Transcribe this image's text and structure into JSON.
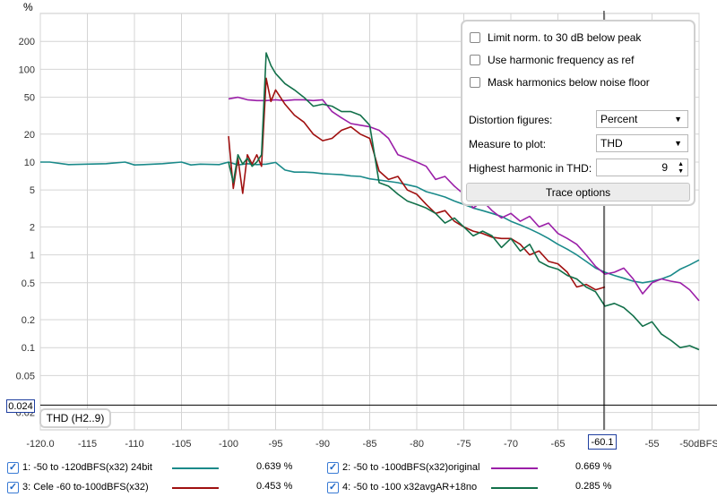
{
  "chart_data": {
    "type": "line",
    "ylabel": "%",
    "xlabel": "",
    "x_unit_label": "dBFS",
    "y_scale": "log",
    "xlim": [
      -120,
      -50
    ],
    "ylim": [
      0.013,
      400
    ],
    "grid": true,
    "x_ticks": [
      -120.0,
      -115,
      -110,
      -105,
      -100,
      -95,
      -90,
      -85,
      -80,
      -75,
      -70,
      -65,
      -60,
      -55,
      -50
    ],
    "x_tick_labels": [
      "-120.0",
      "-115",
      "-110",
      "-105",
      "-100",
      "-95",
      "-90",
      "-85",
      "-80",
      "-75",
      "-70",
      "-65",
      "",
      "-55",
      "-50dBFS"
    ],
    "y_ticks": [
      0.02,
      0.05,
      0.1,
      0.2,
      0.5,
      1,
      2,
      5,
      10,
      20,
      50,
      100,
      200
    ],
    "y_tick_labels": [
      "0.02",
      "0.05",
      "0.1",
      "0.2",
      "0.5",
      "1",
      "2",
      "5",
      "10",
      "20",
      "50",
      "100",
      "200"
    ],
    "cursor_x_label": "-60.1",
    "cursor_x": -60.1,
    "cursor_y_label": "0.024",
    "cursor_y": 0.024,
    "series": [
      {
        "name": "1: -50 to -120dBFS(x32) 24bit",
        "color": "#1a8a8a",
        "x": [
          -120,
          -119,
          -117,
          -115,
          -113,
          -111,
          -110,
          -109,
          -107,
          -105,
          -104,
          -103,
          -101,
          -100,
          -99,
          -98,
          -97,
          -96,
          -95,
          -94,
          -93,
          -92,
          -91,
          -90,
          -89,
          -88,
          -87,
          -86,
          -85,
          -84,
          -83,
          -82,
          -81,
          -80,
          -79,
          -78,
          -77,
          -76,
          -75,
          -74,
          -73,
          -72,
          -71,
          -70,
          -69,
          -68,
          -67,
          -66,
          -65,
          -64,
          -63,
          -62,
          -61,
          -60,
          -59,
          -58,
          -57,
          -56,
          -55,
          -54,
          -53,
          -52,
          -51,
          -50
        ],
        "y": [
          10,
          10,
          9.4,
          9.5,
          9.6,
          10,
          9.3,
          9.4,
          9.6,
          10,
          9.3,
          9.5,
          9.4,
          10,
          9.3,
          9.6,
          9.4,
          9.5,
          9.9,
          8.2,
          7.8,
          7.8,
          7.7,
          7.5,
          7.4,
          7.3,
          7.1,
          7.0,
          6.6,
          6.4,
          6.2,
          6.0,
          5.7,
          5.4,
          4.8,
          4.5,
          4.2,
          3.8,
          3.5,
          3.2,
          3.0,
          2.8,
          2.6,
          2.3,
          2.1,
          1.9,
          1.7,
          1.5,
          1.3,
          1.15,
          1.0,
          0.85,
          0.72,
          0.65,
          0.6,
          0.56,
          0.52,
          0.5,
          0.52,
          0.55,
          0.6,
          0.7,
          0.78,
          0.88
        ]
      },
      {
        "name": "2: -50 to -100dBFS(x32)original",
        "color": "#9b1fa8",
        "x": [
          -100,
          -99,
          -98,
          -97,
          -96,
          -95,
          -94,
          -93,
          -92,
          -91,
          -90,
          -89,
          -88,
          -87,
          -86,
          -85,
          -84,
          -83,
          -82,
          -81,
          -80,
          -79,
          -78,
          -77,
          -76,
          -75,
          -74,
          -73,
          -72,
          -71,
          -70,
          -69,
          -68,
          -67,
          -66,
          -65,
          -64,
          -63,
          -62,
          -61,
          -60,
          -59,
          -58,
          -57,
          -56,
          -55,
          -54,
          -53,
          -52,
          -51,
          -50
        ],
        "y": [
          48,
          50,
          47,
          46,
          46,
          47,
          46,
          47,
          47,
          46,
          47,
          35,
          30,
          26,
          25,
          24,
          22,
          18,
          12,
          11,
          10,
          9,
          6.5,
          7,
          5.5,
          4.5,
          3.2,
          3.8,
          3,
          2.5,
          2.8,
          2.3,
          2.6,
          2,
          2.2,
          1.7,
          1.5,
          1.3,
          1.0,
          0.75,
          0.62,
          0.65,
          0.72,
          0.55,
          0.38,
          0.5,
          0.55,
          0.52,
          0.5,
          0.42,
          0.32
        ]
      },
      {
        "name": "3: Cele -60 to-100dBFS(x32)",
        "color": "#a01010",
        "x": [
          -100,
          -99.5,
          -99,
          -98.5,
          -98,
          -97.5,
          -97,
          -96.5,
          -96,
          -95.5,
          -95,
          -94,
          -93,
          -92,
          -91,
          -90,
          -89,
          -88,
          -87,
          -86,
          -85,
          -84,
          -83,
          -82,
          -81,
          -80,
          -79,
          -78,
          -77,
          -76,
          -75,
          -74,
          -73,
          -72,
          -71,
          -70,
          -69,
          -68,
          -67,
          -66,
          -65,
          -64,
          -63,
          -62,
          -61,
          -60
        ],
        "y": [
          19,
          5.2,
          11,
          4.6,
          12,
          9.5,
          12,
          9,
          80,
          45,
          60,
          42,
          32,
          27,
          20,
          17,
          18,
          22,
          24,
          20,
          18,
          8,
          6.5,
          7,
          5,
          4.5,
          3.5,
          2.8,
          3,
          2.3,
          2.0,
          1.8,
          1.7,
          1.55,
          1.5,
          1.5,
          1.3,
          1.0,
          1.1,
          0.85,
          0.8,
          0.65,
          0.45,
          0.48,
          0.42,
          0.45
        ]
      },
      {
        "name": "4: -50 to -100 x32avgAR+18no",
        "color": "#12704a",
        "x": [
          -100,
          -99.5,
          -99,
          -98.5,
          -98,
          -97.5,
          -97,
          -96.5,
          -96,
          -95.5,
          -95,
          -94,
          -93,
          -92,
          -91,
          -90,
          -89,
          -88,
          -87,
          -86,
          -85,
          -84,
          -83,
          -82,
          -81,
          -80,
          -79,
          -78,
          -77,
          -76,
          -75,
          -74,
          -73,
          -72,
          -71,
          -70,
          -69,
          -68,
          -67,
          -66,
          -65,
          -64,
          -63,
          -62,
          -61,
          -60,
          -59,
          -58,
          -57,
          -56,
          -55,
          -54,
          -53,
          -52,
          -51,
          -50
        ],
        "y": [
          10,
          6,
          12,
          9.5,
          11,
          9,
          10,
          12,
          150,
          110,
          90,
          70,
          60,
          50,
          40,
          42,
          40,
          35,
          35,
          32,
          25,
          6,
          5.5,
          4.5,
          3.8,
          3.5,
          3.2,
          2.8,
          2.2,
          2.5,
          2.0,
          1.6,
          1.8,
          1.6,
          1.2,
          1.5,
          1.1,
          1.3,
          0.85,
          0.75,
          0.7,
          0.6,
          0.55,
          0.45,
          0.4,
          0.28,
          0.3,
          0.27,
          0.22,
          0.17,
          0.19,
          0.14,
          0.12,
          0.1,
          0.105,
          0.095
        ]
      }
    ]
  },
  "options": {
    "limit_norm": "Limit norm. to 30 dB below peak",
    "use_harmonic": "Use harmonic frequency as ref",
    "mask_harmonics": "Mask harmonics below noise floor",
    "distortion_label": "Distortion figures:",
    "distortion_value": "Percent",
    "measure_label": "Measure to plot:",
    "measure_value": "THD",
    "highest_label": "Highest harmonic in THD:",
    "highest_value": "9",
    "trace_button": "Trace options"
  },
  "thd_tag": "THD (H2..9)",
  "legend": [
    {
      "label": "1: -50 to -120dBFS(x32) 24bit",
      "value": "0.639 %",
      "color": "#1a8a8a"
    },
    {
      "label": "2: -50 to -100dBFS(x32)original",
      "value": "0.669 %",
      "color": "#9b1fa8"
    },
    {
      "label": "3: Cele -60 to-100dBFS(x32)",
      "value": "0.453 %",
      "color": "#a01010"
    },
    {
      "label": "4: -50 to -100 x32avgAR+18no",
      "value": "0.285 %",
      "color": "#12704a"
    }
  ]
}
